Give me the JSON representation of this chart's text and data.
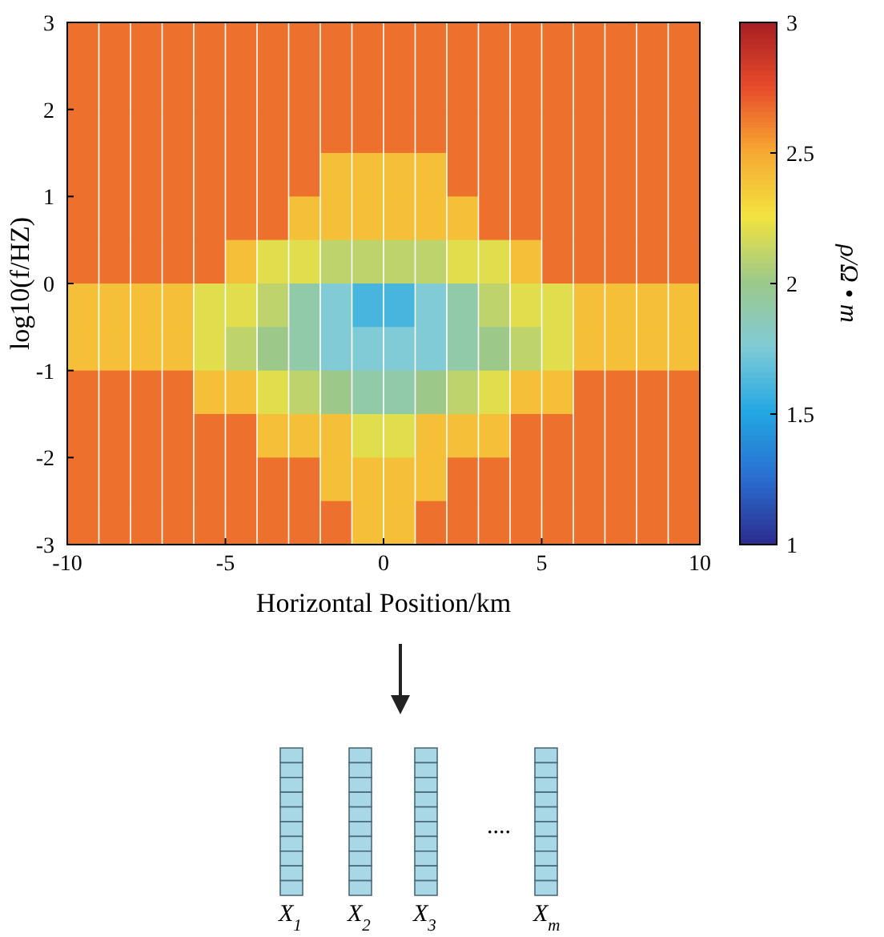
{
  "chart_data": {
    "type": "heatmap",
    "xlabel": "Horizontal Position/km",
    "ylabel": "log10(f/HZ)",
    "clabel": "ρ/Ω • m",
    "x": [
      -9.5,
      -8.5,
      -7.5,
      -6.5,
      -5.5,
      -4.5,
      -3.5,
      -2.5,
      -1.5,
      -0.5,
      0.5,
      1.5,
      2.5,
      3.5,
      4.5,
      5.5,
      6.5,
      7.5,
      8.5,
      9.5
    ],
    "xlim": [
      -10,
      10
    ],
    "xticks": [
      -10,
      -5,
      0,
      5,
      10
    ],
    "ylim": [
      -3,
      3
    ],
    "yticks": [
      -3,
      -2,
      -1,
      0,
      1,
      2,
      3
    ],
    "grid": "x",
    "clim": [
      1,
      3
    ],
    "cticks": [
      1,
      1.5,
      2,
      2.5,
      3
    ],
    "cells": [
      [
        2.65,
        2.65,
        2.65,
        2.65,
        2.65,
        2.65,
        2.65,
        2.65,
        2.65,
        2.65,
        2.65,
        2.65,
        2.65,
        2.65,
        2.65,
        2.65,
        2.65,
        2.65,
        2.65,
        2.65
      ],
      [
        2.65,
        2.65,
        2.65,
        2.65,
        2.65,
        2.65,
        2.65,
        2.65,
        2.65,
        2.65,
        2.65,
        2.65,
        2.65,
        2.65,
        2.65,
        2.65,
        2.65,
        2.65,
        2.65,
        2.65
      ],
      [
        2.65,
        2.65,
        2.65,
        2.65,
        2.65,
        2.65,
        2.65,
        2.65,
        2.65,
        2.65,
        2.65,
        2.65,
        2.65,
        2.65,
        2.65,
        2.65,
        2.65,
        2.65,
        2.65,
        2.65
      ],
      [
        2.65,
        2.65,
        2.65,
        2.65,
        2.65,
        2.65,
        2.65,
        2.65,
        2.4,
        2.4,
        2.4,
        2.4,
        2.65,
        2.65,
        2.65,
        2.65,
        2.65,
        2.65,
        2.65,
        2.65
      ],
      [
        2.65,
        2.65,
        2.65,
        2.65,
        2.65,
        2.65,
        2.65,
        2.4,
        2.4,
        2.4,
        2.4,
        2.4,
        2.4,
        2.65,
        2.65,
        2.65,
        2.65,
        2.65,
        2.65,
        2.65
      ],
      [
        2.65,
        2.65,
        2.65,
        2.65,
        2.65,
        2.4,
        2.2,
        2.2,
        2.1,
        2.1,
        2.1,
        2.1,
        2.2,
        2.2,
        2.4,
        2.65,
        2.65,
        2.65,
        2.65,
        2.65
      ],
      [
        2.4,
        2.4,
        2.4,
        2.4,
        2.2,
        2.2,
        2.1,
        1.9,
        1.75,
        1.6,
        1.6,
        1.75,
        1.9,
        2.1,
        2.2,
        2.2,
        2.4,
        2.4,
        2.4,
        2.4
      ],
      [
        2.4,
        2.4,
        2.4,
        2.4,
        2.2,
        2.1,
        2,
        1.9,
        1.75,
        1.75,
        1.75,
        1.75,
        1.9,
        2,
        2.1,
        2.2,
        2.4,
        2.4,
        2.4,
        2.4
      ],
      [
        2.65,
        2.65,
        2.65,
        2.65,
        2.4,
        2.4,
        2.2,
        2.1,
        2,
        1.9,
        1.9,
        2,
        2.1,
        2.2,
        2.4,
        2.4,
        2.65,
        2.65,
        2.65,
        2.65
      ],
      [
        2.65,
        2.65,
        2.65,
        2.65,
        2.65,
        2.65,
        2.4,
        2.4,
        2.4,
        2.2,
        2.2,
        2.4,
        2.4,
        2.4,
        2.65,
        2.65,
        2.65,
        2.65,
        2.65,
        2.65
      ],
      [
        2.65,
        2.65,
        2.65,
        2.65,
        2.65,
        2.65,
        2.65,
        2.65,
        2.4,
        2.4,
        2.4,
        2.4,
        2.65,
        2.65,
        2.65,
        2.65,
        2.65,
        2.65,
        2.65,
        2.65
      ],
      [
        2.65,
        2.65,
        2.65,
        2.65,
        2.65,
        2.65,
        2.65,
        2.65,
        2.65,
        2.4,
        2.4,
        2.65,
        2.65,
        2.65,
        2.65,
        2.65,
        2.65,
        2.65,
        2.65,
        2.65
      ]
    ],
    "annotations": [
      "X$_{1}$",
      "X$_{2}$",
      "X$_{3}$",
      "....",
      "X$_{m}$"
    ]
  }
}
